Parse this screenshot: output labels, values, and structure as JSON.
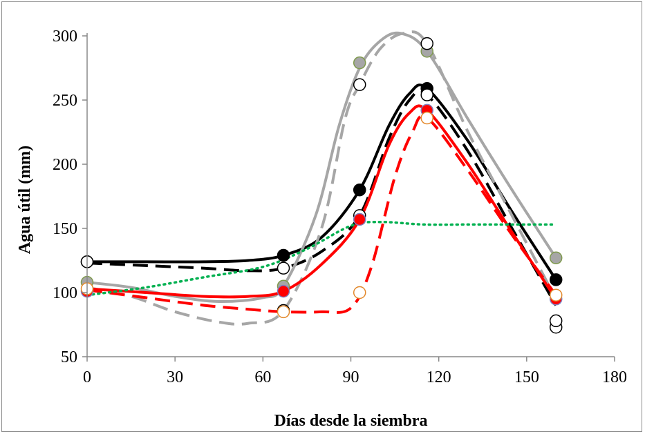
{
  "chart_data": {
    "type": "line",
    "xlabel": "Días desde la siembra",
    "ylabel": "Agua útil (mm)",
    "xlim": [
      0,
      180
    ],
    "ylim": [
      50,
      300
    ],
    "xticks": [
      0,
      30,
      60,
      90,
      120,
      150,
      180
    ],
    "yticks": [
      50,
      100,
      150,
      200,
      250,
      300
    ],
    "xtick_labels": [
      "0",
      "30",
      "60",
      "90",
      "120",
      "150",
      "180"
    ],
    "ytick_labels": [
      "50",
      "100",
      "150",
      "200",
      "250",
      "300"
    ],
    "grid": false,
    "legend": "none",
    "series": [
      {
        "style": "solid",
        "color": "#000000",
        "marker_fill": "#000000",
        "marker_stroke": "#000000",
        "points": [
          [
            0,
            124
          ],
          [
            67,
            129
          ],
          [
            93,
            180
          ],
          [
            116,
            259
          ],
          [
            160,
            110
          ]
        ],
        "curve": [
          [
            0,
            124
          ],
          [
            20,
            124
          ],
          [
            40,
            124
          ],
          [
            55,
            125
          ],
          [
            67,
            129
          ],
          [
            80,
            143
          ],
          [
            93,
            180
          ],
          [
            103,
            230
          ],
          [
            110,
            255
          ],
          [
            116,
            259
          ],
          [
            130,
            218
          ],
          [
            145,
            163
          ],
          [
            160,
            110
          ]
        ]
      },
      {
        "style": "dashed",
        "color": "#000000",
        "marker_fill": "#ffffff",
        "marker_stroke": "#000000",
        "points": [
          [
            0,
            124
          ],
          [
            67,
            119
          ],
          [
            93,
            160
          ],
          [
            116,
            254
          ],
          [
            160,
            73
          ],
          [
            160,
            78
          ]
        ],
        "curve": [
          [
            0,
            123
          ],
          [
            20,
            121
          ],
          [
            40,
            119
          ],
          [
            55,
            117
          ],
          [
            67,
            119
          ],
          [
            80,
            132
          ],
          [
            93,
            160
          ],
          [
            103,
            220
          ],
          [
            110,
            250
          ],
          [
            116,
            254
          ],
          [
            130,
            210
          ],
          [
            145,
            150
          ],
          [
            160,
            90
          ]
        ]
      },
      {
        "style": "solid",
        "color": "#a6a6a6",
        "marker_fill": "#a6a6a6",
        "marker_stroke": "#7f9a4d",
        "points": [
          [
            0,
            108
          ],
          [
            67,
            105
          ],
          [
            93,
            279
          ],
          [
            116,
            288
          ],
          [
            160,
            127
          ]
        ],
        "curve": [
          [
            0,
            108
          ],
          [
            15,
            104
          ],
          [
            30,
            97
          ],
          [
            45,
            93
          ],
          [
            60,
            96
          ],
          [
            67,
            105
          ],
          [
            78,
            160
          ],
          [
            86,
            230
          ],
          [
            93,
            275
          ],
          [
            100,
            296
          ],
          [
            107,
            302
          ],
          [
            116,
            288
          ],
          [
            130,
            235
          ],
          [
            145,
            180
          ],
          [
            160,
            127
          ]
        ]
      },
      {
        "style": "dashed",
        "color": "#a6a6a6",
        "marker_fill": "#ffffff",
        "marker_stroke": "#000000",
        "points": [
          [
            67,
            86
          ],
          [
            93,
            262
          ],
          [
            116,
            294
          ]
        ],
        "curve": [
          [
            0,
            104
          ],
          [
            15,
            97
          ],
          [
            30,
            85
          ],
          [
            45,
            77
          ],
          [
            55,
            76
          ],
          [
            67,
            86
          ],
          [
            80,
            150
          ],
          [
            88,
            235
          ],
          [
            93,
            262
          ],
          [
            100,
            290
          ],
          [
            108,
            302
          ],
          [
            116,
            294
          ],
          [
            130,
            225
          ],
          [
            145,
            160
          ],
          [
            160,
            95
          ]
        ]
      },
      {
        "style": "solid",
        "color": "#ff0000",
        "marker_fill": "#ff0000",
        "marker_stroke": "#7f7fbf",
        "points": [
          [
            0,
            101
          ],
          [
            67,
            101
          ],
          [
            93,
            157
          ],
          [
            116,
            242
          ],
          [
            160,
            95
          ]
        ],
        "curve": [
          [
            0,
            103
          ],
          [
            20,
            100
          ],
          [
            40,
            97
          ],
          [
            55,
            97
          ],
          [
            67,
            101
          ],
          [
            80,
            122
          ],
          [
            93,
            157
          ],
          [
            103,
            215
          ],
          [
            110,
            240
          ],
          [
            116,
            242
          ],
          [
            130,
            200
          ],
          [
            145,
            147
          ],
          [
            160,
            95
          ]
        ]
      },
      {
        "style": "dashed",
        "color": "#ff0000",
        "marker_fill": "#ffffff",
        "marker_stroke": "#e3892c",
        "points": [
          [
            0,
            103
          ],
          [
            67,
            85
          ],
          [
            93,
            100
          ],
          [
            116,
            236
          ],
          [
            160,
            98
          ]
        ],
        "curve": [
          [
            0,
            102
          ],
          [
            20,
            96
          ],
          [
            40,
            90
          ],
          [
            55,
            87
          ],
          [
            67,
            85
          ],
          [
            80,
            85
          ],
          [
            90,
            88
          ],
          [
            97,
            120
          ],
          [
            105,
            190
          ],
          [
            111,
            225
          ],
          [
            116,
            236
          ],
          [
            130,
            195
          ],
          [
            145,
            145
          ],
          [
            160,
            98
          ]
        ]
      },
      {
        "style": "dotted",
        "color": "#00b050",
        "marker_fill": "none",
        "marker_stroke": "none",
        "points": [],
        "curve": [
          [
            0,
            98
          ],
          [
            20,
            104
          ],
          [
            40,
            112
          ],
          [
            60,
            120
          ],
          [
            75,
            134
          ],
          [
            90,
            152
          ],
          [
            100,
            155
          ],
          [
            115,
            153
          ],
          [
            130,
            153
          ],
          [
            145,
            153
          ],
          [
            160,
            153
          ]
        ]
      }
    ]
  }
}
